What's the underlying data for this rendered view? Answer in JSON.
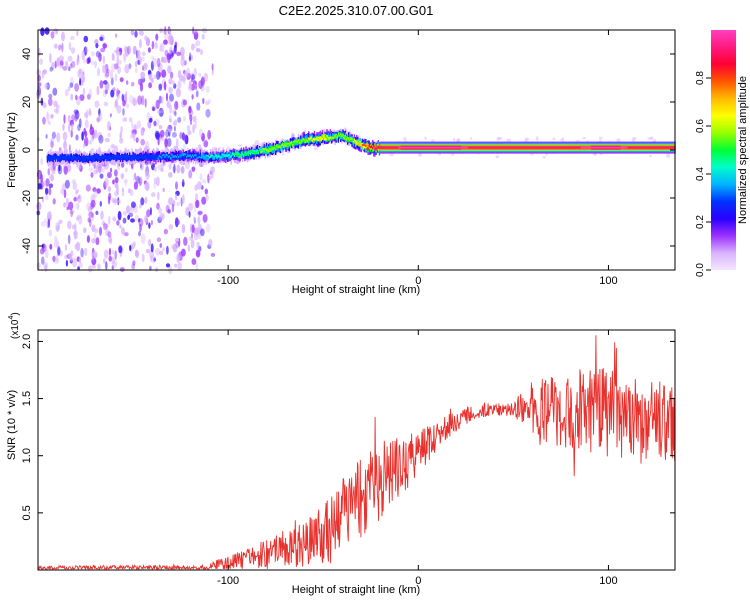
{
  "title": "C2E2.2025.310.07.00.G01",
  "chart_data": [
    {
      "type": "heatmap",
      "name": "spectrogram",
      "xlabel": "Height of straight line (km)",
      "ylabel": "Frequency (Hz)",
      "xlim": [
        -200,
        135
      ],
      "ylim": [
        -50,
        50
      ],
      "xticks": [
        -100,
        0,
        100
      ],
      "yticks": [
        -40,
        -20,
        0,
        20,
        40
      ],
      "colorbar": {
        "label": "Normalized spectral amplitude",
        "range": [
          0,
          1
        ],
        "ticks": [
          "0.0",
          "0.2",
          "0.4",
          "0.6",
          "0.8"
        ],
        "tick_values": [
          0.0,
          0.2,
          0.4,
          0.6,
          0.8
        ],
        "colors": [
          "#f4e6ff",
          "#d9b3ff",
          "#9b30ff",
          "#2a00ff",
          "#0033ff",
          "#00b3ff",
          "#00ffcc",
          "#00ff33",
          "#99ff00",
          "#ffff00",
          "#ffbb00",
          "#ff5500",
          "#ff0033",
          "#ff1a80",
          "#ff40c0"
        ]
      },
      "trace": {
        "x": [
          -200,
          -150,
          -120,
          -110,
          -100,
          -90,
          -80,
          -70,
          -60,
          -50,
          -40,
          -35,
          -30,
          -25,
          -20,
          0,
          50,
          100,
          135
        ],
        "freq": [
          -3.5,
          -3,
          -2.5,
          -3,
          -2.5,
          -1.5,
          0,
          2,
          4,
          5,
          6,
          4,
          2,
          1,
          1,
          1,
          1,
          1,
          1
        ],
        "amplitude": [
          0.3,
          0.3,
          0.35,
          0.4,
          0.45,
          0.5,
          0.55,
          0.55,
          0.6,
          0.65,
          0.55,
          0.6,
          0.75,
          0.85,
          0.95,
          0.98,
          0.95,
          0.97,
          0.95
        ]
      },
      "noise_region_x": [
        -200,
        -108
      ]
    },
    {
      "type": "line",
      "name": "snr",
      "xlabel": "Height of straight line (km)",
      "ylabel": "SNR (10 * v/v)",
      "y_multiplier_label": "(x10",
      "y_multiplier_exp": "4",
      "y_multiplier_close": ")",
      "xlim": [
        -200,
        135
      ],
      "ylim": [
        0,
        2.1
      ],
      "xticks": [
        -100,
        0,
        100
      ],
      "yticks": [
        0.5,
        1.0,
        1.5,
        2.0
      ],
      "color": "#e8302c",
      "envelope": {
        "x": [
          -200,
          -120,
          -105,
          -95,
          -85,
          -75,
          -65,
          -55,
          -45,
          -35,
          -25,
          -15,
          -5,
          5,
          15,
          25,
          35,
          45,
          55,
          65,
          75,
          85,
          95,
          105,
          115,
          125,
          135
        ],
        "y": [
          0.02,
          0.02,
          0.04,
          0.08,
          0.12,
          0.18,
          0.2,
          0.25,
          0.35,
          0.55,
          0.7,
          0.85,
          0.95,
          1.1,
          1.25,
          1.35,
          1.4,
          1.4,
          1.42,
          1.4,
          1.4,
          1.4,
          1.38,
          1.36,
          1.32,
          1.3,
          1.3
        ]
      },
      "spread": {
        "x": [
          -200,
          -120,
          -100,
          -80,
          -60,
          -40,
          -20,
          0,
          10,
          30,
          50,
          60,
          80,
          100,
          120,
          135
        ],
        "y": [
          0.02,
          0.02,
          0.06,
          0.12,
          0.2,
          0.35,
          0.35,
          0.2,
          0.12,
          0.06,
          0.06,
          0.25,
          0.35,
          0.4,
          0.35,
          0.35
        ]
      }
    }
  ]
}
